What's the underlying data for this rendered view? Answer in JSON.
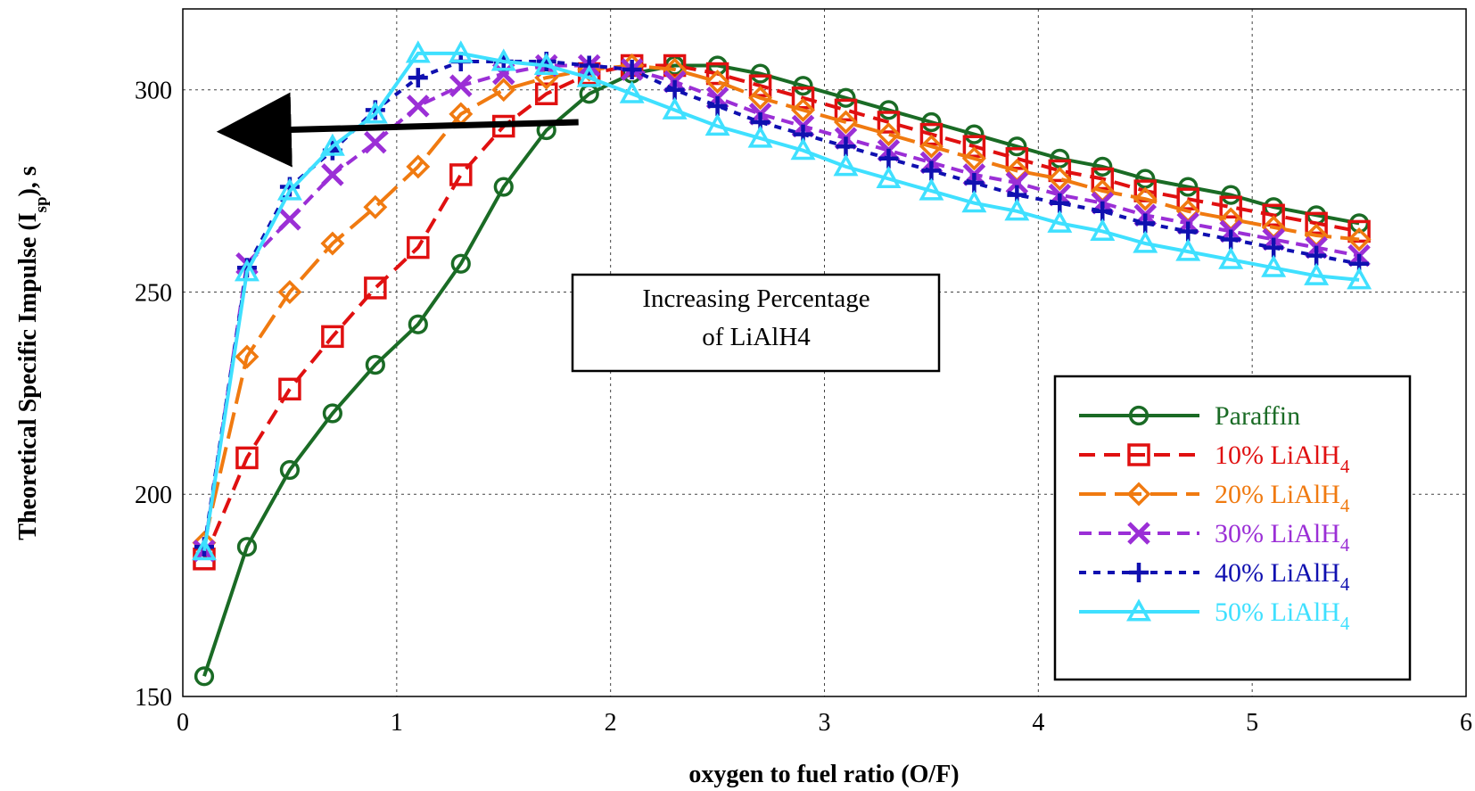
{
  "chart_data": {
    "type": "line",
    "xlabel": "oxygen to fuel ratio (O/F)",
    "ylabel": "Theoretical Specific Impulse (I",
    "ylabel_sub": "sp",
    "ylabel_suffix": "), s",
    "xlim": [
      0,
      6
    ],
    "ylim": [
      150,
      320
    ],
    "x_ticks": [
      0,
      1,
      2,
      3,
      4,
      5,
      6
    ],
    "y_ticks": [
      150,
      200,
      250,
      300
    ],
    "grid": true,
    "legend_position": "bottom-right",
    "annotation": {
      "line1": "Increasing Percentage",
      "line2": "of LiAlH4",
      "arrow_from": [
        1.85,
        292
      ],
      "arrow_to": [
        0.42,
        290
      ]
    },
    "x": [
      0.1,
      0.3,
      0.5,
      0.7,
      0.9,
      1.1,
      1.3,
      1.5,
      1.7,
      1.9,
      2.1,
      2.3,
      2.5,
      2.7,
      2.9,
      3.1,
      3.3,
      3.5,
      3.7,
      3.9,
      4.1,
      4.3,
      4.5,
      4.7,
      4.9,
      5.1,
      5.3,
      5.5
    ],
    "series": [
      {
        "name": "Paraffin",
        "label_main": "Paraffin",
        "label_sub": "",
        "color": "#1a6b25",
        "marker": "circle",
        "dash": "",
        "values": [
          155,
          187,
          206,
          220,
          232,
          242,
          257,
          276,
          290,
          299,
          304,
          306,
          306,
          304,
          301,
          298,
          295,
          292,
          289,
          286,
          283,
          281,
          278,
          276,
          274,
          271,
          269,
          267
        ]
      },
      {
        "name": "10% LiAlH4",
        "label_main": "10% LiAlH",
        "label_sub": "4",
        "color": "#e01010",
        "marker": "square",
        "dash": "18 10",
        "values": [
          184,
          209,
          226,
          239,
          251,
          261,
          279,
          291,
          299,
          304,
          306,
          306,
          304,
          301,
          298,
          295,
          292,
          289,
          286,
          283,
          280,
          278,
          275,
          273,
          271,
          269,
          267,
          265
        ]
      },
      {
        "name": "20% LiAlH4",
        "label_main": "20% LiAlH",
        "label_sub": "4",
        "color": "#f07a10",
        "marker": "diamond",
        "dash": "30 10",
        "values": [
          188,
          234,
          250,
          262,
          271,
          281,
          294,
          300,
          303,
          305,
          306,
          305,
          302,
          298,
          295,
          292,
          289,
          286,
          283,
          280,
          278,
          275,
          273,
          270,
          268,
          266,
          264,
          263
        ]
      },
      {
        "name": "30% LiAlH4",
        "label_main": "30% LiAlH",
        "label_sub": "4",
        "color": "#9b2fd6",
        "marker": "x",
        "dash": "14 8",
        "values": [
          186,
          257,
          268,
          279,
          287,
          296,
          301,
          304,
          306,
          306,
          305,
          302,
          298,
          294,
          291,
          288,
          285,
          282,
          279,
          277,
          274,
          272,
          269,
          267,
          265,
          263,
          261,
          259
        ]
      },
      {
        "name": "40% LiAlH4",
        "label_main": "40% LiAlH",
        "label_sub": "4",
        "color": "#1010b0",
        "marker": "plus",
        "dash": "8 8",
        "values": [
          187,
          256,
          276,
          285,
          295,
          303,
          307,
          307,
          307,
          306,
          305,
          300,
          296,
          292,
          289,
          286,
          283,
          280,
          277,
          274,
          272,
          270,
          267,
          265,
          263,
          261,
          259,
          257
        ]
      },
      {
        "name": "50% LiAlH4",
        "label_main": "50% LiAlH",
        "label_sub": "4",
        "color": "#3fe0ff",
        "marker": "triangle",
        "dash": "",
        "values": [
          186,
          255,
          275,
          286,
          294,
          309,
          309,
          307,
          306,
          303,
          299,
          295,
          291,
          288,
          285,
          281,
          278,
          275,
          272,
          270,
          267,
          265,
          262,
          260,
          258,
          256,
          254,
          253
        ]
      }
    ]
  }
}
